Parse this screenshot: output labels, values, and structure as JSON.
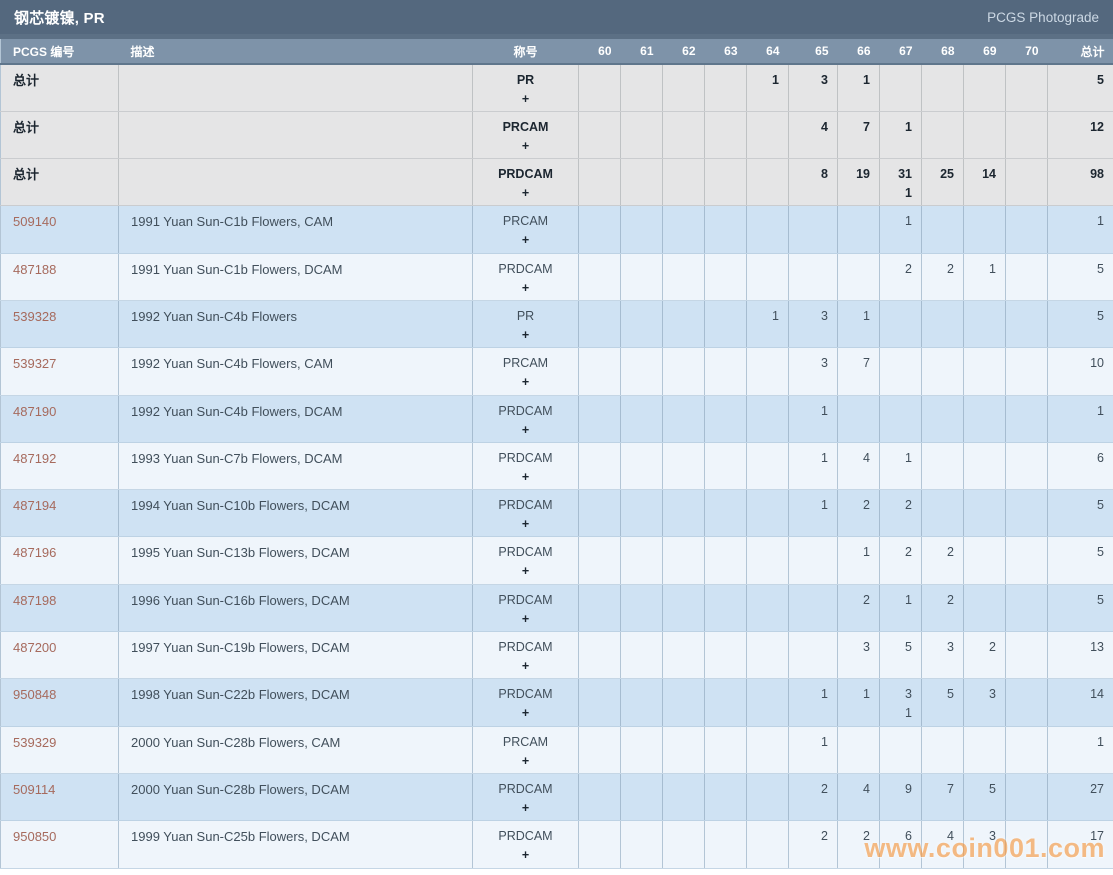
{
  "title_bar": {
    "title": "钢芯镀镍, PR",
    "right_link": "PCGS Photograde"
  },
  "table": {
    "headers": {
      "pcgs_no": "PCGS 编号",
      "description": "描述",
      "designation": "称号",
      "grades": [
        "60",
        "61",
        "62",
        "63",
        "64",
        "65",
        "66",
        "67",
        "68",
        "69",
        "70"
      ],
      "total": "总计"
    },
    "total_label": "总计",
    "plus": "+",
    "total_rows": [
      {
        "designation": "PR",
        "counts": {
          "64": "1",
          "65": "3",
          "66": "1"
        },
        "plus": {},
        "total": "5"
      },
      {
        "designation": "PRCAM",
        "counts": {
          "65": "4",
          "66": "7",
          "67": "1"
        },
        "plus": {},
        "total": "12"
      },
      {
        "designation": "PRDCAM",
        "counts": {
          "65": "8",
          "66": "19",
          "67": "31",
          "68": "25",
          "69": "14"
        },
        "plus": {
          "67": "1"
        },
        "total": "98"
      }
    ],
    "rows": [
      {
        "pcgs_no": "509140",
        "description": "1991 Yuan Sun-C1b Flowers, CAM",
        "designation": "PRCAM",
        "counts": {
          "67": "1"
        },
        "plus": {},
        "total": "1"
      },
      {
        "pcgs_no": "487188",
        "description": "1991 Yuan Sun-C1b Flowers, DCAM",
        "designation": "PRDCAM",
        "counts": {
          "67": "2",
          "68": "2",
          "69": "1"
        },
        "plus": {},
        "total": "5"
      },
      {
        "pcgs_no": "539328",
        "description": "1992 Yuan Sun-C4b Flowers",
        "designation": "PR",
        "counts": {
          "64": "1",
          "65": "3",
          "66": "1"
        },
        "plus": {},
        "total": "5"
      },
      {
        "pcgs_no": "539327",
        "description": "1992 Yuan Sun-C4b Flowers, CAM",
        "designation": "PRCAM",
        "counts": {
          "65": "3",
          "66": "7"
        },
        "plus": {},
        "total": "10"
      },
      {
        "pcgs_no": "487190",
        "description": "1992 Yuan Sun-C4b Flowers, DCAM",
        "designation": "PRDCAM",
        "counts": {
          "65": "1"
        },
        "plus": {},
        "total": "1"
      },
      {
        "pcgs_no": "487192",
        "description": "1993 Yuan Sun-C7b Flowers, DCAM",
        "designation": "PRDCAM",
        "counts": {
          "65": "1",
          "66": "4",
          "67": "1"
        },
        "plus": {},
        "total": "6"
      },
      {
        "pcgs_no": "487194",
        "description": "1994 Yuan Sun-C10b Flowers, DCAM",
        "designation": "PRDCAM",
        "counts": {
          "65": "1",
          "66": "2",
          "67": "2"
        },
        "plus": {},
        "total": "5"
      },
      {
        "pcgs_no": "487196",
        "description": "1995 Yuan Sun-C13b Flowers, DCAM",
        "designation": "PRDCAM",
        "counts": {
          "66": "1",
          "67": "2",
          "68": "2"
        },
        "plus": {},
        "total": "5"
      },
      {
        "pcgs_no": "487198",
        "description": "1996 Yuan Sun-C16b Flowers, DCAM",
        "designation": "PRDCAM",
        "counts": {
          "66": "2",
          "67": "1",
          "68": "2"
        },
        "plus": {},
        "total": "5"
      },
      {
        "pcgs_no": "487200",
        "description": "1997 Yuan Sun-C19b Flowers, DCAM",
        "designation": "PRDCAM",
        "counts": {
          "66": "3",
          "67": "5",
          "68": "3",
          "69": "2"
        },
        "plus": {},
        "total": "13"
      },
      {
        "pcgs_no": "950848",
        "description": "1998 Yuan Sun-C22b Flowers, DCAM",
        "designation": "PRDCAM",
        "counts": {
          "65": "1",
          "66": "1",
          "67": "3",
          "68": "5",
          "69": "3"
        },
        "plus": {
          "67": "1"
        },
        "total": "14"
      },
      {
        "pcgs_no": "539329",
        "description": "2000 Yuan Sun-C28b Flowers, CAM",
        "designation": "PRCAM",
        "counts": {
          "65": "1"
        },
        "plus": {},
        "total": "1"
      },
      {
        "pcgs_no": "509114",
        "description": "2000 Yuan Sun-C28b Flowers, DCAM",
        "designation": "PRDCAM",
        "counts": {
          "65": "2",
          "66": "4",
          "67": "9",
          "68": "7",
          "69": "5"
        },
        "plus": {},
        "total": "27"
      },
      {
        "pcgs_no": "950850",
        "description": "1999 Yuan Sun-C25b Flowers, DCAM",
        "designation": "PRDCAM",
        "counts": {
          "65": "2",
          "66": "2",
          "67": "6",
          "68": "4",
          "69": "3"
        },
        "plus": {},
        "total": "17"
      }
    ]
  },
  "watermark": "www.coin001.com",
  "colors": {
    "title_bar_bg": "#54687e",
    "header_bg": "#7e93a9",
    "total_row_bg": "#e5e5e6",
    "row_blue_bg": "#cfe2f3",
    "row_white_bg": "#eff5fb",
    "link": "#a66a5d",
    "watermark": "#f6953a"
  }
}
